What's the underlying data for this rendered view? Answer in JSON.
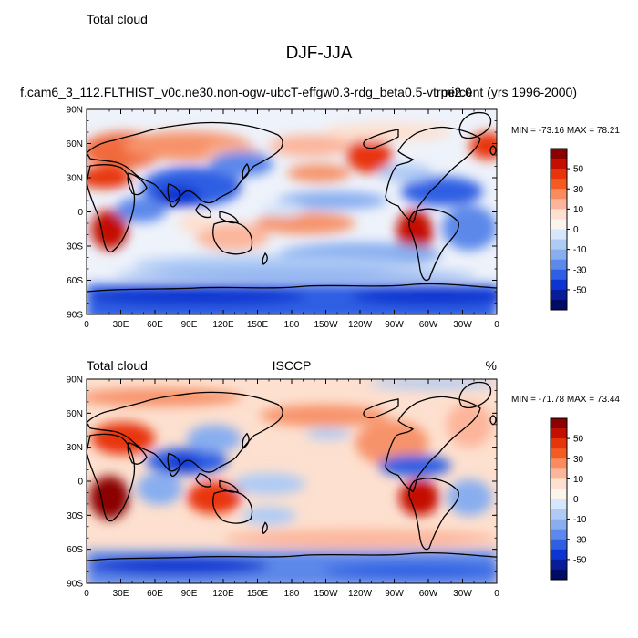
{
  "figure": {
    "title": "DJF-JJA"
  },
  "panels": [
    {
      "id": "model",
      "left_label": "Total cloud",
      "center_label": "f.cam6_3_112.FLTHIST_v0c.ne30.non-ogw-ubcT-effgw0.3-rdg_beta0.5-vtrmi2.0",
      "right_label": "percent (yrs 1996-2000)",
      "stats": "MIN = -73.16 MAX =  78.21"
    },
    {
      "id": "obs",
      "left_label": "Total cloud",
      "center_label": "ISCCP",
      "right_label": "%",
      "stats": "MIN = -71.78 MAX =  73.44"
    }
  ],
  "axes": {
    "x_ticks": [
      "0",
      "30E",
      "60E",
      "90E",
      "120E",
      "150E",
      "180",
      "150W",
      "120W",
      "90W",
      "60W",
      "30W",
      "0"
    ],
    "y_ticks": [
      "90N",
      "60N",
      "30N",
      "0",
      "30S",
      "60S",
      "90S"
    ]
  },
  "colorbar": {
    "labels": [
      "50",
      "30",
      "10",
      "0",
      "-10",
      "-30",
      "-50"
    ],
    "colors": [
      "#8b0000",
      "#c40f00",
      "#e8340a",
      "#f55a22",
      "#f98b5e",
      "#fcb59b",
      "#fde0cf",
      "#fbf3ec",
      "#d6e6fb",
      "#afcbf5",
      "#88aef0",
      "#5b88ea",
      "#2f5fe3",
      "#0d34d0",
      "#061c98",
      "#000b63"
    ]
  },
  "chart_data": [
    {
      "type": "heatmap",
      "title": "DJF-JJA",
      "variable": "Total cloud",
      "source": "f.cam6_3_112.FLTHIST_v0c.ne30.non-ogw-ubcT-effgw0.3-rdg_beta0.5-vtrmi2.0",
      "units": "percent (yrs 1996-2000)",
      "min": -73.16,
      "max": 78.21,
      "xlim": [
        0,
        360
      ],
      "ylim": [
        -90,
        90
      ],
      "contour_levels": [
        -60,
        -50,
        -40,
        -30,
        -20,
        -10,
        -5,
        0,
        5,
        10,
        20,
        30,
        40,
        50,
        60
      ],
      "features": [
        {
          "lon": 50,
          "lat": 45,
          "value": 30
        },
        {
          "lon": 20,
          "lat": -18,
          "value": 45
        },
        {
          "lon": 85,
          "lat": 20,
          "value": -55
        },
        {
          "lon": 230,
          "lat": 45,
          "value": 50
        },
        {
          "lon": 305,
          "lat": -15,
          "value": 40
        },
        {
          "lon": 250,
          "lat": 15,
          "value": -30
        },
        {
          "lon": 300,
          "lat": 15,
          "value": -30
        },
        {
          "lon": 140,
          "lat": -18,
          "value": 15
        },
        {
          "lon": 200,
          "lat": -70,
          "value": -45
        },
        {
          "lon": 200,
          "lat": 65,
          "value": 25
        }
      ]
    },
    {
      "type": "heatmap",
      "title": "DJF-JJA",
      "variable": "Total cloud",
      "source": "ISCCP",
      "units": "%",
      "min": -71.78,
      "max": 73.44,
      "xlim": [
        0,
        360
      ],
      "ylim": [
        -90,
        90
      ],
      "contour_levels": [
        -60,
        -50,
        -40,
        -30,
        -20,
        -10,
        -5,
        0,
        5,
        10,
        20,
        30,
        40,
        50,
        60
      ],
      "features": [
        {
          "lon": 20,
          "lat": -15,
          "value": 55
        },
        {
          "lon": 305,
          "lat": -15,
          "value": 45
        },
        {
          "lon": 85,
          "lat": 18,
          "value": -55
        },
        {
          "lon": 130,
          "lat": -20,
          "value": 30
        },
        {
          "lon": 35,
          "lat": 28,
          "value": 25
        },
        {
          "lon": 295,
          "lat": 12,
          "value": -35
        },
        {
          "lon": 250,
          "lat": 25,
          "value": 20
        },
        {
          "lon": 200,
          "lat": -70,
          "value": -40
        },
        {
          "lon": 180,
          "lat": 0,
          "value": -10
        }
      ]
    }
  ]
}
